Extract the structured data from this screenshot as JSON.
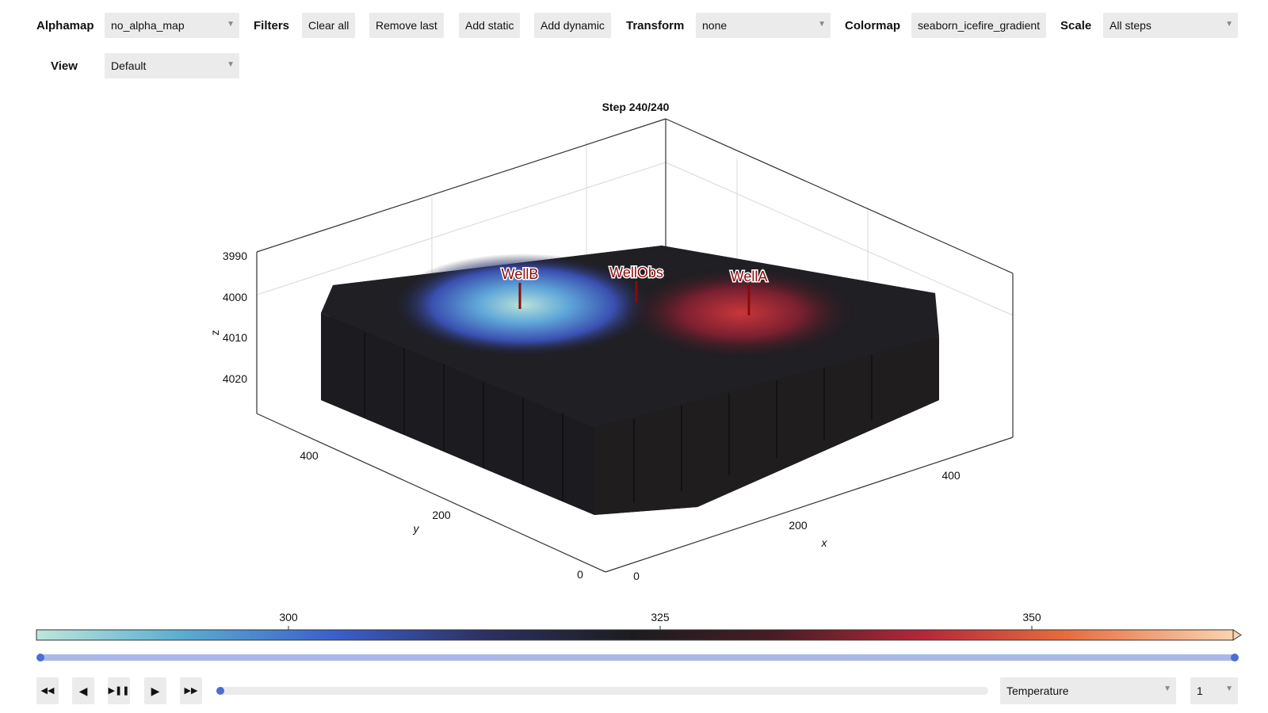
{
  "toolbar": {
    "alphamap_label": "Alphamap",
    "alphamap_value": "no_alpha_map",
    "filters_label": "Filters",
    "clear_all": "Clear all",
    "remove_last": "Remove last",
    "add_static": "Add static",
    "add_dynamic": "Add dynamic",
    "transform_label": "Transform",
    "transform_value": "none",
    "colormap_label": "Colormap",
    "colormap_value": "seaborn_icefire_gradient",
    "scale_label": "Scale",
    "scale_value": "All steps",
    "view_label": "View",
    "view_value": "Default"
  },
  "plot": {
    "title": "Step 240/240",
    "z_label": "z",
    "y_label": "y",
    "x_label": "x",
    "z_ticks": [
      "3990",
      "4000",
      "4010",
      "4020"
    ],
    "y_ticks": [
      "400",
      "200",
      "0"
    ],
    "x_ticks": [
      "0",
      "200",
      "400"
    ],
    "wells": [
      "WellB",
      "WellObs",
      "WellA"
    ]
  },
  "colorbar": {
    "ticks": [
      "300",
      "325",
      "350"
    ]
  },
  "playback": {
    "progress": 1.0,
    "slider_position": 0.0,
    "variable": "Temperature",
    "component": "1"
  },
  "colors": {
    "accent": "#4a6fd0",
    "track": "#a9b8e8",
    "well": "#8b0a0a"
  }
}
